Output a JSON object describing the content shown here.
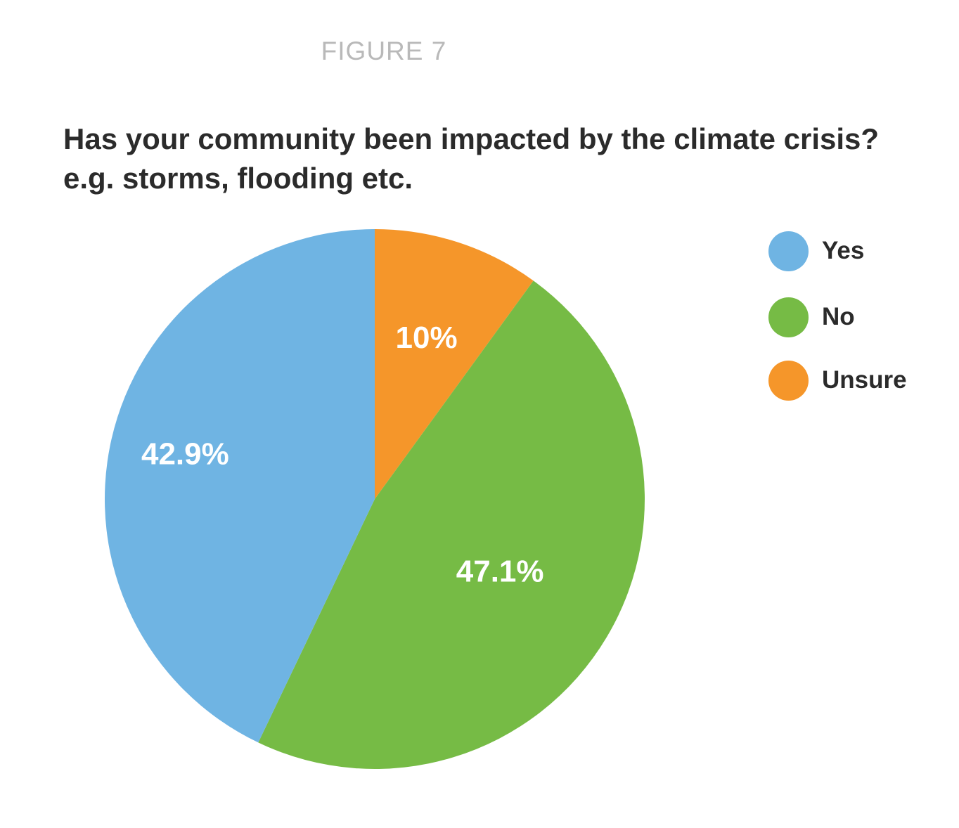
{
  "figure_label": "FIGURE 7",
  "title_lines": [
    "Has your community been impacted by the climate crisis?",
    "e.g. storms, flooding etc."
  ],
  "chart_data": {
    "type": "pie",
    "title": "Has your community been impacted by the climate crisis? e.g. storms, flooding etc.",
    "start_angle": "12 o'clock, clockwise",
    "slices": [
      {
        "label": "Unsure",
        "value": 10.0,
        "display": "10%",
        "color": "#f5962a"
      },
      {
        "label": "No",
        "value": 47.1,
        "display": "47.1%",
        "color": "#76bb45"
      },
      {
        "label": "Yes",
        "value": 42.9,
        "display": "42.9%",
        "color": "#6fb4e3"
      }
    ],
    "legend": {
      "placement": "right",
      "entries": [
        {
          "label": "Yes",
          "color": "#6fb4e3"
        },
        {
          "label": "No",
          "color": "#76bb45"
        },
        {
          "label": "Unsure",
          "color": "#f5962a"
        }
      ]
    }
  }
}
